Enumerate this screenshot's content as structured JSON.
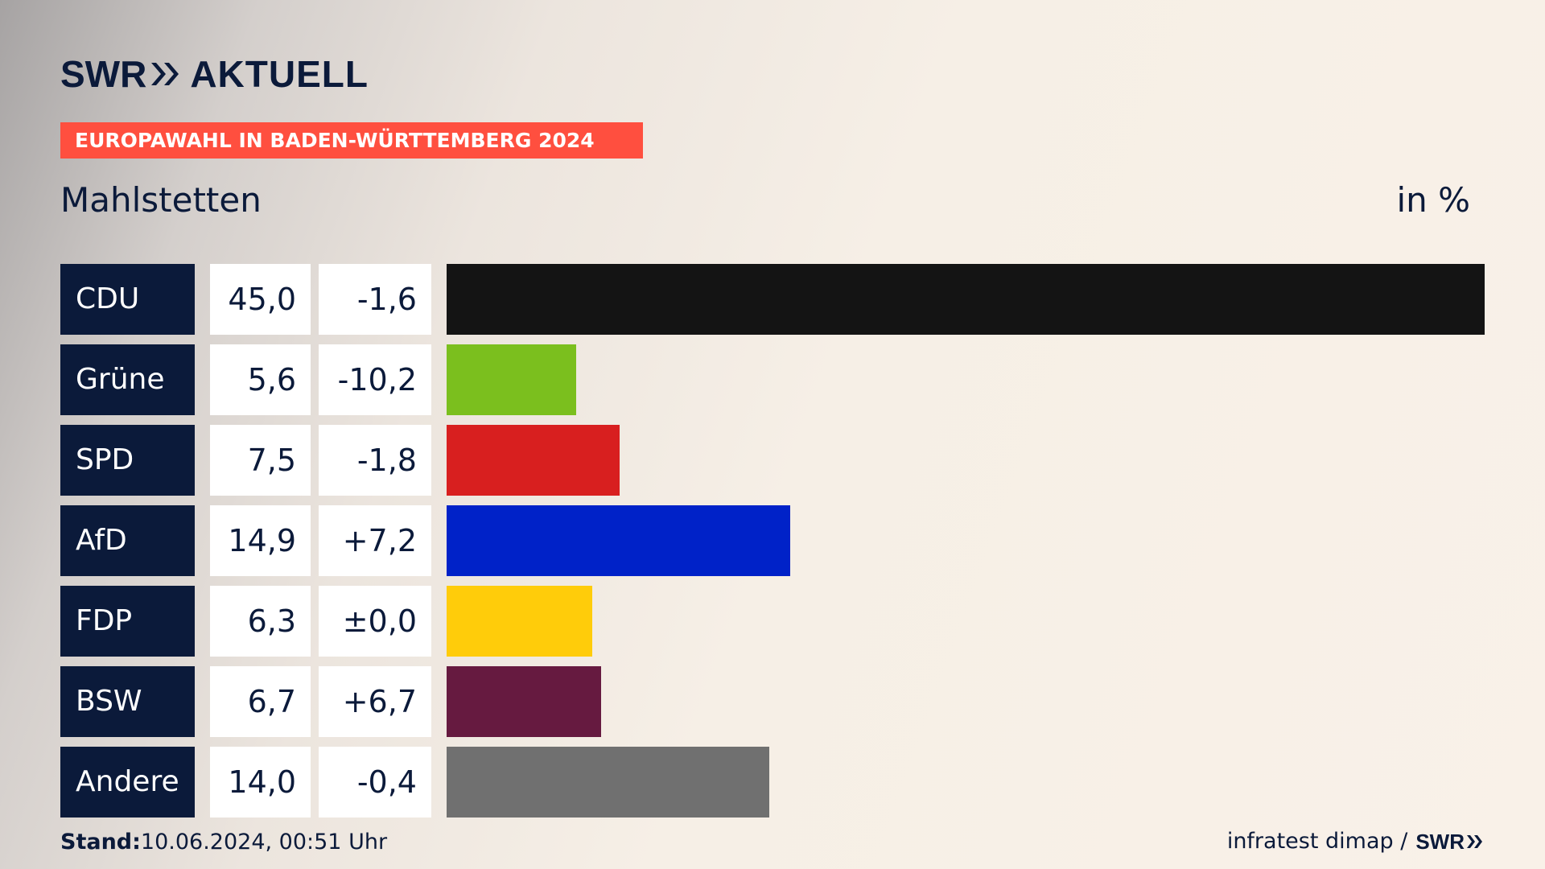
{
  "brand": {
    "prefix": "SWR",
    "name": "AKTUELL"
  },
  "banner": {
    "label": "EUROPAWAHL IN BADEN-WÜRTTEMBERG 2024"
  },
  "subtitle": "Mahlstetten",
  "unit": "in %",
  "footer": {
    "stand_label": "Stand:",
    "stand_value": "10.06.2024, 00:51 Uhr",
    "source": "infratest dimap /",
    "source_logo": "SWR"
  },
  "colors": {
    "navy": "#0b1a3a",
    "banner": "#ff4f3f"
  },
  "chart_data": {
    "type": "bar",
    "orientation": "horizontal",
    "categories": [
      "CDU",
      "Grüne",
      "SPD",
      "AfD",
      "FDP",
      "BSW",
      "Andere"
    ],
    "values": [
      45.0,
      5.6,
      7.5,
      14.9,
      6.3,
      6.7,
      14.0
    ],
    "value_labels": [
      "45,0",
      "5,6",
      "7,5",
      "14,9",
      "6,3",
      "6,7",
      "14,0"
    ],
    "changes": [
      -1.6,
      -10.2,
      -1.8,
      7.2,
      0.0,
      6.7,
      -0.4
    ],
    "change_labels": [
      "-1,6",
      "-10,2",
      "-1,8",
      "+7,2",
      "±0,0",
      "+6,7",
      "-0,4"
    ],
    "colors": [
      "#141414",
      "#7bbf1e",
      "#d81f1f",
      "#0022c8",
      "#ffcc0a",
      "#661a40",
      "#707070"
    ],
    "xlim": [
      0,
      45.0
    ],
    "title": "Mahlstetten",
    "unit": "in %"
  }
}
